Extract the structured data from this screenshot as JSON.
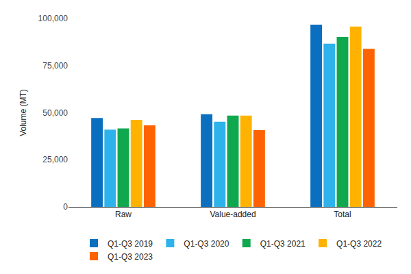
{
  "chart_data": {
    "type": "bar",
    "categories": [
      "Raw",
      "Value-added",
      "Total"
    ],
    "y_label": "Volume (MT)",
    "series": [
      {
        "name": "Q1-Q3 2019",
        "color": "#0b6fc0",
        "values": [
          47200,
          49200,
          96700
        ]
      },
      {
        "name": "Q1-Q3 2020",
        "color": "#2eb2ec",
        "values": [
          41000,
          45200,
          86600
        ]
      },
      {
        "name": "Q1-Q3 2021",
        "color": "#0fa84e",
        "values": [
          41600,
          48500,
          90200
        ]
      },
      {
        "name": "Q1-Q3 2022",
        "color": "#ffb300",
        "values": [
          46200,
          48500,
          95700
        ]
      },
      {
        "name": "Q1-Q3 2023",
        "color": "#ff6200",
        "values": [
          43300,
          40700,
          83900
        ]
      }
    ],
    "ylim": [
      0,
      100000
    ],
    "yticks": [
      0,
      {
        "value": 25000,
        "label": "25,000"
      },
      {
        "value": 50000,
        "label": "50,000"
      },
      {
        "value": 75000,
        "label": "75,000"
      },
      {
        "value": 100000,
        "label": "100,000"
      }
    ],
    "grid": false,
    "legend": "bottom"
  }
}
